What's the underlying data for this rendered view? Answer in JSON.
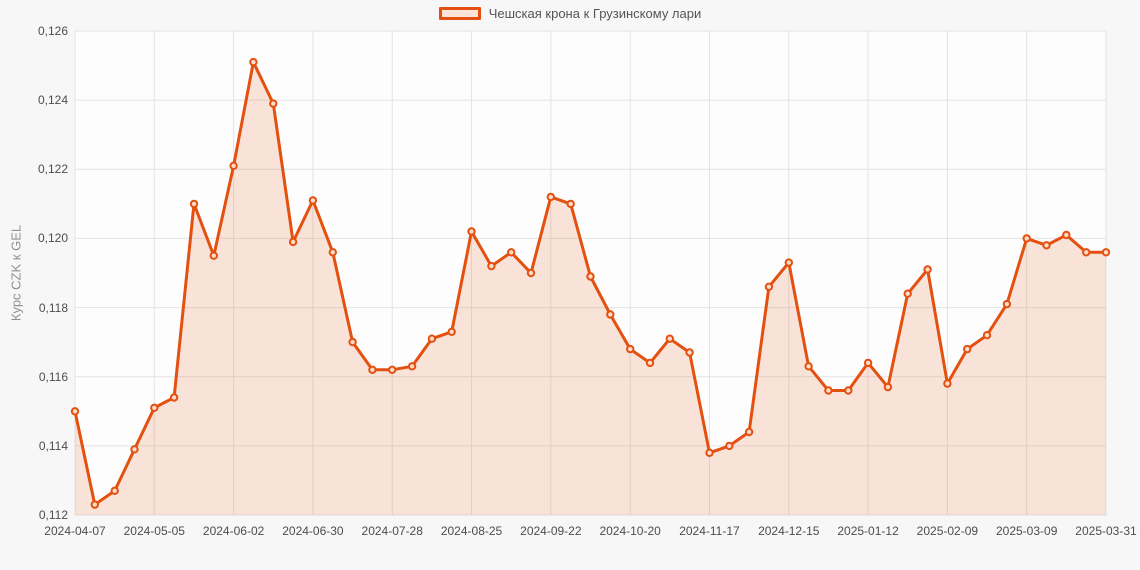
{
  "legend": {
    "label": "Чешская крона к Грузинскому лари"
  },
  "y_axis": {
    "title": "Курс CZK к GEL",
    "ticks": [
      "0,126",
      "0,124",
      "0,122",
      "0,120",
      "0,118",
      "0,116",
      "0,114",
      "0,112"
    ]
  },
  "x_axis": {
    "ticks": [
      "2024-04-07",
      "2024-05-05",
      "2024-06-02",
      "2024-06-30",
      "2024-07-28",
      "2024-08-25",
      "2024-09-22",
      "2024-10-20",
      "2024-11-17",
      "2024-12-15",
      "2025-01-12",
      "2025-02-09",
      "2025-03-09",
      "2025-03-31"
    ]
  },
  "colors": {
    "line": "#e4500f",
    "area": "rgba(228,80,15,0.15)",
    "marker_fill": "#f9dcc9",
    "grid": "#e3e3e3",
    "plot_bg": "#fdfdfd",
    "outer_bg": "#f7f7f7",
    "tick_text": "#4d4d4d",
    "axis_title_text": "#909090",
    "legend_text": "#555555"
  },
  "chart_data": {
    "type": "line",
    "title": "",
    "xlabel": "",
    "ylabel": "Курс CZK к GEL",
    "ylim": [
      0.112,
      0.126
    ],
    "y_tick_step": 0.002,
    "grid": true,
    "area_fill": true,
    "markers": "circle",
    "legend_position": "top-center",
    "x": [
      "2024-04-07",
      "2024-04-14",
      "2024-04-21",
      "2024-04-28",
      "2024-05-05",
      "2024-05-12",
      "2024-05-19",
      "2024-05-26",
      "2024-06-02",
      "2024-06-09",
      "2024-06-16",
      "2024-06-23",
      "2024-06-30",
      "2024-07-07",
      "2024-07-14",
      "2024-07-21",
      "2024-07-28",
      "2024-08-04",
      "2024-08-11",
      "2024-08-18",
      "2024-08-25",
      "2024-09-01",
      "2024-09-08",
      "2024-09-15",
      "2024-09-22",
      "2024-09-29",
      "2024-10-06",
      "2024-10-13",
      "2024-10-20",
      "2024-10-27",
      "2024-11-03",
      "2024-11-10",
      "2024-11-17",
      "2024-11-24",
      "2024-12-01",
      "2024-12-08",
      "2024-12-15",
      "2024-12-22",
      "2024-12-29",
      "2025-01-05",
      "2025-01-12",
      "2025-01-19",
      "2025-01-26",
      "2025-02-02",
      "2025-02-09",
      "2025-02-16",
      "2025-02-23",
      "2025-03-02",
      "2025-03-09",
      "2025-03-16",
      "2025-03-23",
      "2025-03-30",
      "2025-03-31"
    ],
    "x_tick_labels": [
      "2024-04-07",
      "2024-05-05",
      "2024-06-02",
      "2024-06-30",
      "2024-07-28",
      "2024-08-25",
      "2024-09-22",
      "2024-10-20",
      "2024-11-17",
      "2024-12-15",
      "2025-01-12",
      "2025-02-09",
      "2025-03-09",
      "2025-03-31"
    ],
    "y_tick_labels": [
      "0,126",
      "0,124",
      "0,122",
      "0,120",
      "0,118",
      "0,116",
      "0,114",
      "0,112"
    ],
    "series": [
      {
        "name": "Чешская крона к Грузинскому лари",
        "values": [
          0.115,
          0.1123,
          0.1127,
          0.1139,
          0.1151,
          0.1154,
          0.121,
          0.1195,
          0.1221,
          0.1251,
          0.1239,
          0.1199,
          0.1211,
          0.1196,
          0.117,
          0.1162,
          0.1162,
          0.1163,
          0.1171,
          0.1173,
          0.1202,
          0.1192,
          0.1196,
          0.119,
          0.1212,
          0.121,
          0.1189,
          0.1178,
          0.1168,
          0.1164,
          0.1171,
          0.1167,
          0.1138,
          0.114,
          0.1144,
          0.1186,
          0.1193,
          0.1163,
          0.1156,
          0.1156,
          0.1164,
          0.1157,
          0.1184,
          0.1191,
          0.1158,
          0.1168,
          0.1172,
          0.1181,
          0.12,
          0.1198,
          0.1201,
          0.1196,
          0.1196
        ]
      }
    ]
  }
}
